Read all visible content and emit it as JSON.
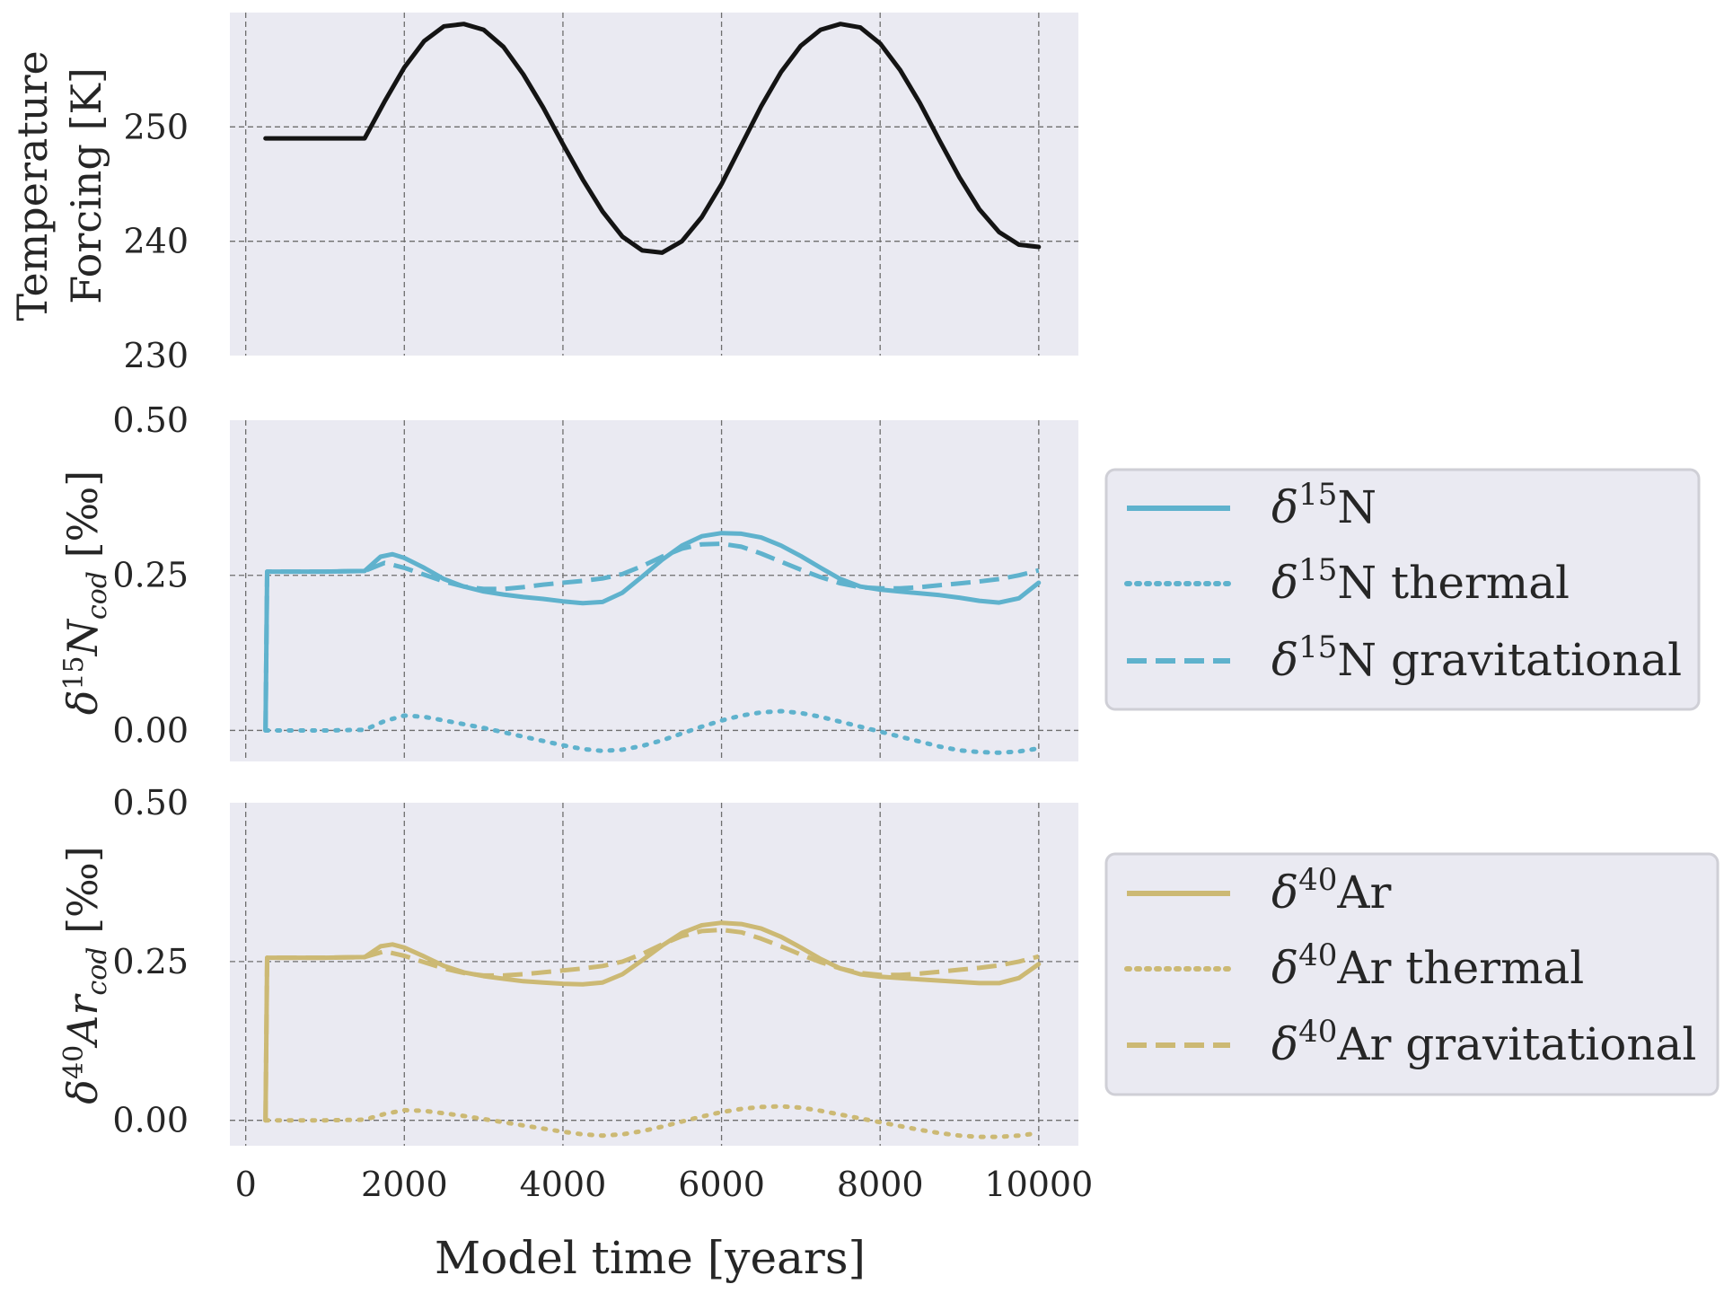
{
  "chart_data": [
    {
      "type": "line",
      "ylabel": [
        "Temperature",
        "Forcing [K]"
      ],
      "ylim": [
        230,
        260
      ],
      "xlim": [
        -200,
        10500
      ],
      "yticks": [
        230,
        240,
        250
      ],
      "xticks": [
        0,
        2000,
        4000,
        6000,
        8000,
        10000
      ],
      "grid": true,
      "series": [
        {
          "color": "#141414",
          "style": "solid",
          "x": [
            250,
            1500,
            1750,
            2000,
            2250,
            2500,
            2750,
            3000,
            3250,
            3500,
            3750,
            4000,
            4250,
            4500,
            4750,
            5000,
            5250,
            5500,
            5750,
            6000,
            6250,
            6500,
            6750,
            7000,
            7250,
            7500,
            7750,
            8000,
            8250,
            8500,
            8750,
            9000,
            9250,
            9500,
            9750,
            10000
          ],
          "y": [
            249,
            249,
            252.2,
            255.2,
            257.5,
            258.8,
            259,
            258.5,
            257,
            254.6,
            251.7,
            248.5,
            245.4,
            242.6,
            240.4,
            239.2,
            239,
            240,
            242.1,
            245,
            248.4,
            251.8,
            254.8,
            257.1,
            258.5,
            259,
            258.7,
            257.3,
            255,
            252.1,
            248.8,
            245.6,
            242.8,
            240.8,
            239.7,
            239.5
          ]
        }
      ]
    },
    {
      "type": "line",
      "ylabel": "δ15Ncod [‰]",
      "ylim": [
        -0.05,
        0.5
      ],
      "xlim": [
        -200,
        10500
      ],
      "yticks": [
        "0.00",
        "0.25",
        "0.50"
      ],
      "xticks": [
        0,
        2000,
        4000,
        6000,
        8000,
        10000
      ],
      "grid": true,
      "legend": "outside-right",
      "series": [
        {
          "name": "δ15N",
          "color": "#5fb2cd",
          "style": "solid",
          "x": [
            250,
            270,
            500,
            1000,
            1500,
            1700,
            1850,
            2000,
            2250,
            2500,
            2750,
            3000,
            3250,
            3500,
            3750,
            4000,
            4250,
            4500,
            4750,
            5000,
            5250,
            5500,
            5750,
            6000,
            6250,
            6500,
            6750,
            7000,
            7250,
            7500,
            7750,
            8000,
            8250,
            8500,
            8750,
            9000,
            9250,
            9500,
            9750,
            10000
          ],
          "y": [
            0,
            0.256,
            0.256,
            0.256,
            0.257,
            0.28,
            0.284,
            0.278,
            0.262,
            0.244,
            0.232,
            0.224,
            0.219,
            0.215,
            0.212,
            0.208,
            0.205,
            0.207,
            0.222,
            0.248,
            0.275,
            0.298,
            0.313,
            0.318,
            0.317,
            0.311,
            0.298,
            0.281,
            0.262,
            0.244,
            0.232,
            0.227,
            0.224,
            0.221,
            0.218,
            0.214,
            0.209,
            0.206,
            0.213,
            0.238
          ]
        },
        {
          "name": "δ15N thermal",
          "color": "#5fb2cd",
          "style": "dotted",
          "x": [
            250,
            500,
            1000,
            1500,
            1750,
            2000,
            2250,
            2500,
            2750,
            3000,
            3250,
            3500,
            3750,
            4000,
            4250,
            4500,
            4750,
            5000,
            5250,
            5500,
            5750,
            6000,
            6250,
            6500,
            6750,
            7000,
            7250,
            7500,
            7750,
            8000,
            8250,
            8500,
            8750,
            9000,
            9250,
            9500,
            9750,
            10000
          ],
          "y": [
            0,
            0,
            0,
            0.001,
            0.015,
            0.024,
            0.022,
            0.016,
            0.01,
            0.004,
            -0.003,
            -0.01,
            -0.017,
            -0.024,
            -0.03,
            -0.033,
            -0.031,
            -0.025,
            -0.016,
            -0.005,
            0.006,
            0.016,
            0.024,
            0.029,
            0.031,
            0.028,
            0.022,
            0.014,
            0.006,
            -0.002,
            -0.01,
            -0.018,
            -0.026,
            -0.032,
            -0.035,
            -0.036,
            -0.034,
            -0.029
          ]
        },
        {
          "name": "δ15N gravitational",
          "color": "#5fb2cd",
          "style": "dashed",
          "x": [
            250,
            270,
            500,
            1000,
            1500,
            1750,
            2000,
            2250,
            2500,
            2750,
            3000,
            3250,
            3500,
            3750,
            4000,
            4250,
            4500,
            4750,
            5000,
            5250,
            5500,
            5750,
            6000,
            6250,
            6500,
            6750,
            7000,
            7250,
            7500,
            7750,
            8000,
            8250,
            8500,
            8750,
            9000,
            9250,
            9500,
            9750,
            10000
          ],
          "y": [
            0,
            0.256,
            0.256,
            0.256,
            0.257,
            0.27,
            0.262,
            0.251,
            0.24,
            0.232,
            0.228,
            0.228,
            0.231,
            0.235,
            0.238,
            0.241,
            0.245,
            0.252,
            0.265,
            0.28,
            0.293,
            0.3,
            0.301,
            0.296,
            0.285,
            0.272,
            0.259,
            0.247,
            0.237,
            0.231,
            0.229,
            0.229,
            0.231,
            0.234,
            0.237,
            0.24,
            0.244,
            0.25,
            0.258
          ]
        }
      ]
    },
    {
      "type": "line",
      "ylabel": "δ40Arcod [‰]",
      "ylim": [
        -0.04,
        0.5
      ],
      "xlim": [
        -200,
        10500
      ],
      "yticks": [
        "0.00",
        "0.25",
        "0.50"
      ],
      "xticks": [
        0,
        2000,
        4000,
        6000,
        8000,
        10000
      ],
      "xlabel": "Model time [years]",
      "grid": true,
      "legend": "outside-right",
      "series": [
        {
          "name": "δ40Ar",
          "color": "#ccb974",
          "style": "solid",
          "x": [
            250,
            270,
            500,
            1000,
            1500,
            1700,
            1850,
            2000,
            2250,
            2500,
            2750,
            3000,
            3250,
            3500,
            3750,
            4000,
            4250,
            4500,
            4750,
            5000,
            5250,
            5500,
            5750,
            6000,
            6250,
            6500,
            6750,
            7000,
            7250,
            7500,
            7750,
            8000,
            8250,
            8500,
            8750,
            9000,
            9250,
            9500,
            9750,
            10000
          ],
          "y": [
            0,
            0.256,
            0.256,
            0.256,
            0.257,
            0.274,
            0.277,
            0.272,
            0.258,
            0.243,
            0.233,
            0.227,
            0.223,
            0.219,
            0.217,
            0.215,
            0.214,
            0.217,
            0.23,
            0.252,
            0.275,
            0.295,
            0.307,
            0.311,
            0.309,
            0.302,
            0.289,
            0.272,
            0.254,
            0.239,
            0.23,
            0.226,
            0.224,
            0.222,
            0.22,
            0.218,
            0.216,
            0.216,
            0.224,
            0.246
          ]
        },
        {
          "name": "δ40Ar thermal",
          "color": "#ccb974",
          "style": "dotted",
          "x": [
            250,
            500,
            1000,
            1500,
            1750,
            2000,
            2250,
            2500,
            2750,
            3000,
            3250,
            3500,
            3750,
            4000,
            4250,
            4500,
            4750,
            5000,
            5250,
            5500,
            5750,
            6000,
            6250,
            6500,
            6750,
            7000,
            7250,
            7500,
            7750,
            8000,
            8250,
            8500,
            8750,
            9000,
            9250,
            9500,
            9750,
            10000
          ],
          "y": [
            0,
            0,
            0,
            0.001,
            0.01,
            0.016,
            0.015,
            0.011,
            0.007,
            0.002,
            -0.003,
            -0.008,
            -0.013,
            -0.018,
            -0.022,
            -0.024,
            -0.022,
            -0.017,
            -0.01,
            -0.002,
            0.006,
            0.013,
            0.018,
            0.021,
            0.022,
            0.02,
            0.015,
            0.009,
            0.003,
            -0.003,
            -0.009,
            -0.015,
            -0.02,
            -0.024,
            -0.026,
            -0.026,
            -0.024,
            -0.02
          ]
        },
        {
          "name": "δ40Ar gravitational",
          "color": "#ccb974",
          "style": "dashed",
          "x": [
            250,
            270,
            500,
            1000,
            1500,
            1750,
            2000,
            2250,
            2500,
            2750,
            3000,
            3250,
            3500,
            3750,
            4000,
            4250,
            4500,
            4750,
            5000,
            5250,
            5500,
            5750,
            6000,
            6250,
            6500,
            6750,
            7000,
            7250,
            7500,
            7750,
            8000,
            8250,
            8500,
            8750,
            9000,
            9250,
            9500,
            9750,
            10000
          ],
          "y": [
            0,
            0.256,
            0.256,
            0.256,
            0.257,
            0.266,
            0.259,
            0.249,
            0.239,
            0.232,
            0.228,
            0.228,
            0.23,
            0.233,
            0.236,
            0.239,
            0.243,
            0.25,
            0.262,
            0.277,
            0.29,
            0.298,
            0.3,
            0.296,
            0.286,
            0.274,
            0.261,
            0.249,
            0.239,
            0.232,
            0.229,
            0.229,
            0.231,
            0.234,
            0.237,
            0.24,
            0.244,
            0.25,
            0.258
          ]
        }
      ]
    }
  ],
  "legend_symbols": {
    "n15": "δ",
    "n15_sup": "15",
    "n15_sym": "N",
    "ar40": "δ",
    "ar40_sup": "40",
    "ar40_sym": "Ar"
  }
}
